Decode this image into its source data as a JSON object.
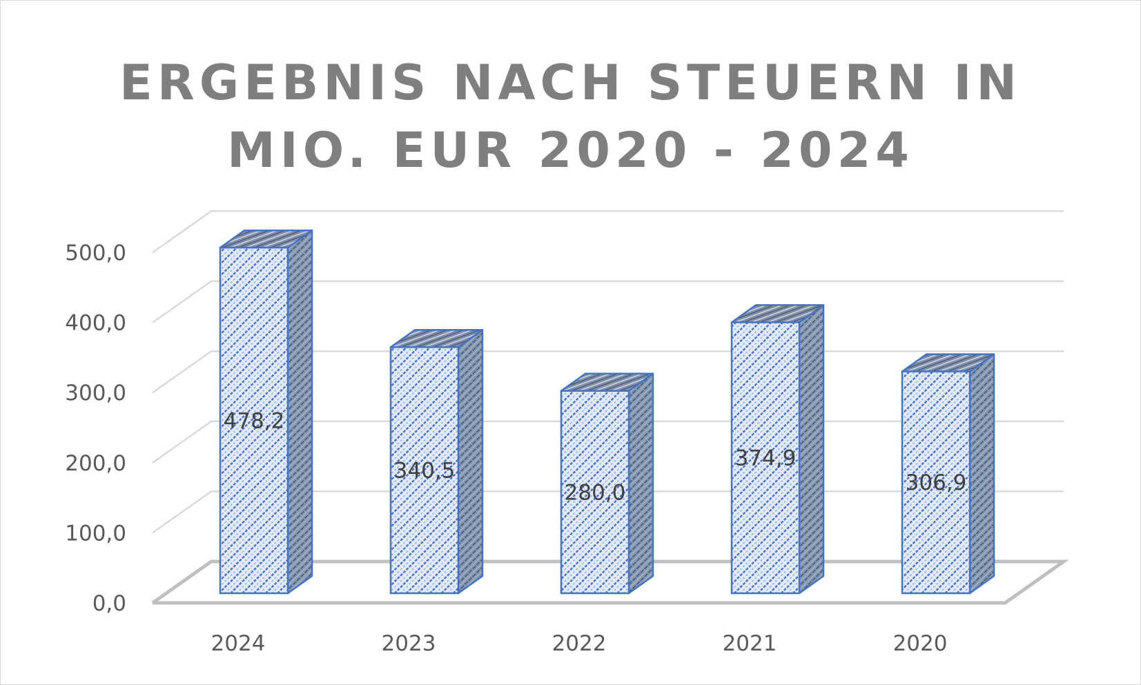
{
  "chart_data": {
    "type": "bar",
    "title_line1": "ERGEBNIS NACH STEUERN IN",
    "title_line2": "MIO. EUR 2020 - 2024",
    "categories": [
      "2024",
      "2023",
      "2022",
      "2021",
      "2020"
    ],
    "values": [
      478.2,
      340.5,
      280.0,
      374.9,
      306.9
    ],
    "data_labels": [
      "478,2",
      "340,5",
      "280,0",
      "374,9",
      "306,9"
    ],
    "y_ticks": [
      "0,0",
      "100,0",
      "200,0",
      "300,0",
      "400,0",
      "500,0"
    ],
    "ylim": [
      0,
      500
    ],
    "grid": true,
    "legend": "none",
    "colors": {
      "bar_stroke": "#4472c4",
      "bar_fill": "#dae3f3",
      "side_fill": "#8497b0",
      "grid": "#d9d9d9",
      "floor": "#bfbfbf",
      "title": "#7f7f7f"
    }
  }
}
